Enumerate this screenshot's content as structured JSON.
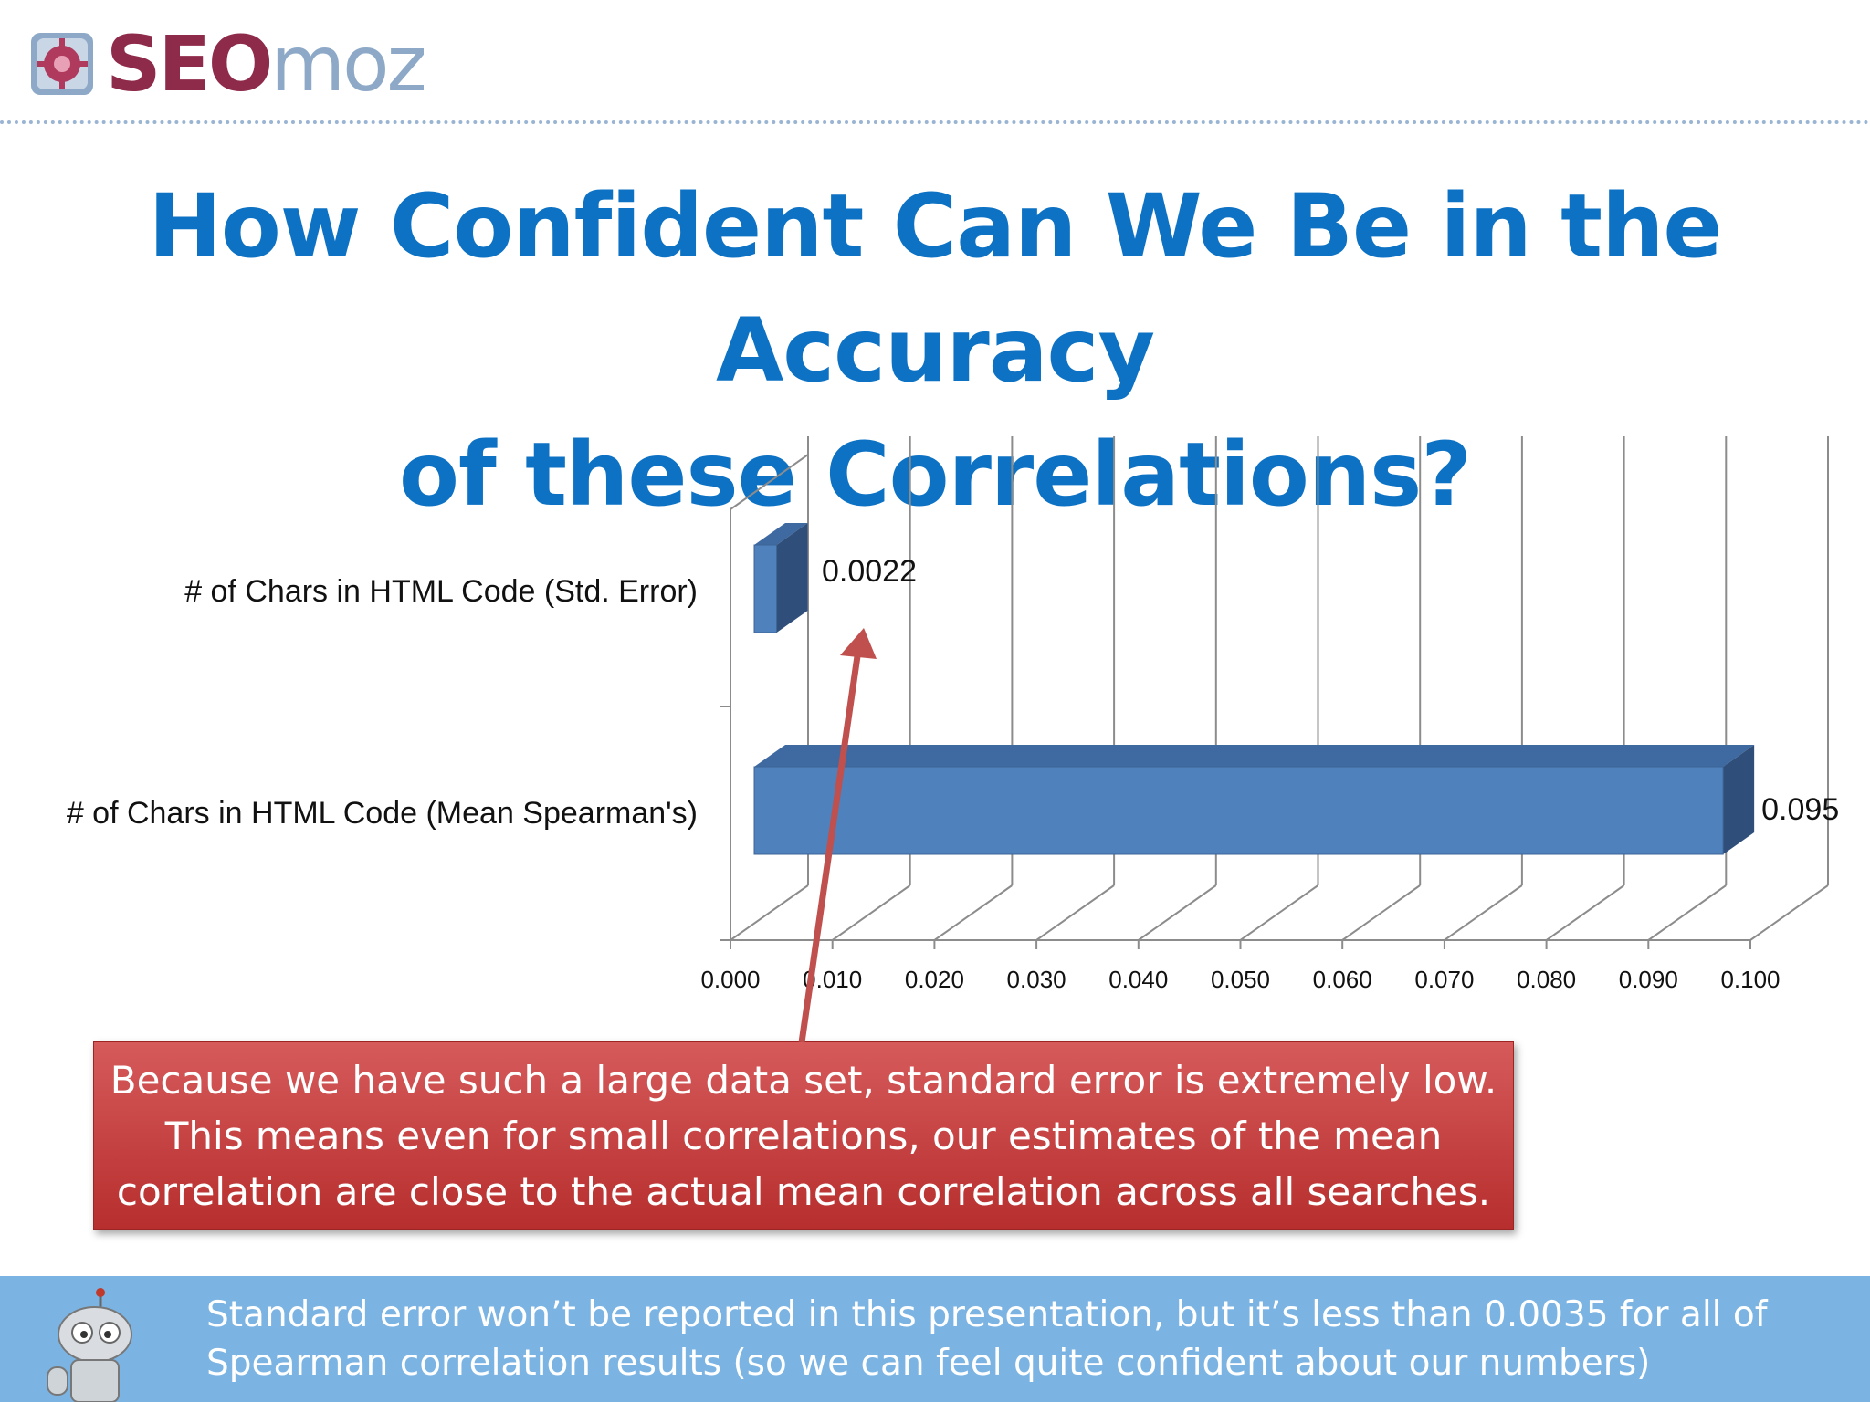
{
  "brand": {
    "logo_seo": "SEO",
    "logo_moz": "moz",
    "badge_icon": "seomoz-gear-badge-icon",
    "colors": {
      "seo": "#8e2a4a",
      "moz": "#8da9c7",
      "title": "#0d72c4"
    }
  },
  "slide": {
    "title_line1": "How Confident Can We Be in the Accuracy",
    "title_line2": "of these Correlations?"
  },
  "chart_data": {
    "type": "bar",
    "orientation": "horizontal",
    "style": "3d-clustered",
    "categories": [
      "# of Chars in HTML Code (Std. Error)",
      "# of Chars in HTML Code (Mean Spearman's)"
    ],
    "values": [
      0.0022,
      0.095
    ],
    "data_labels": [
      "0.0022",
      "0.095"
    ],
    "xlim": [
      0,
      0.1
    ],
    "x_ticks": [
      "0.000",
      "0.010",
      "0.020",
      "0.030",
      "0.040",
      "0.050",
      "0.060",
      "0.070",
      "0.080",
      "0.090",
      "0.100"
    ],
    "grid": true,
    "legend": "none",
    "bar_color": "#4f81bd",
    "bar_top_color": "#3f6aa1",
    "bar_side_color": "#2f4f7a"
  },
  "callout": {
    "line1": "Because we have such a large data set, standard error is extremely low.",
    "line2": "This means even for small correlations, our estimates of the mean",
    "line3": "correlation are close to the actual mean correlation across all searches."
  },
  "footer": {
    "line1": "Standard error won’t be reported in this presentation, but it’s less than 0.0035 for all of",
    "line2": "Spearman correlation results (so we can feel quite confident about our numbers)",
    "mascot_icon": "robot-mascot-icon"
  }
}
